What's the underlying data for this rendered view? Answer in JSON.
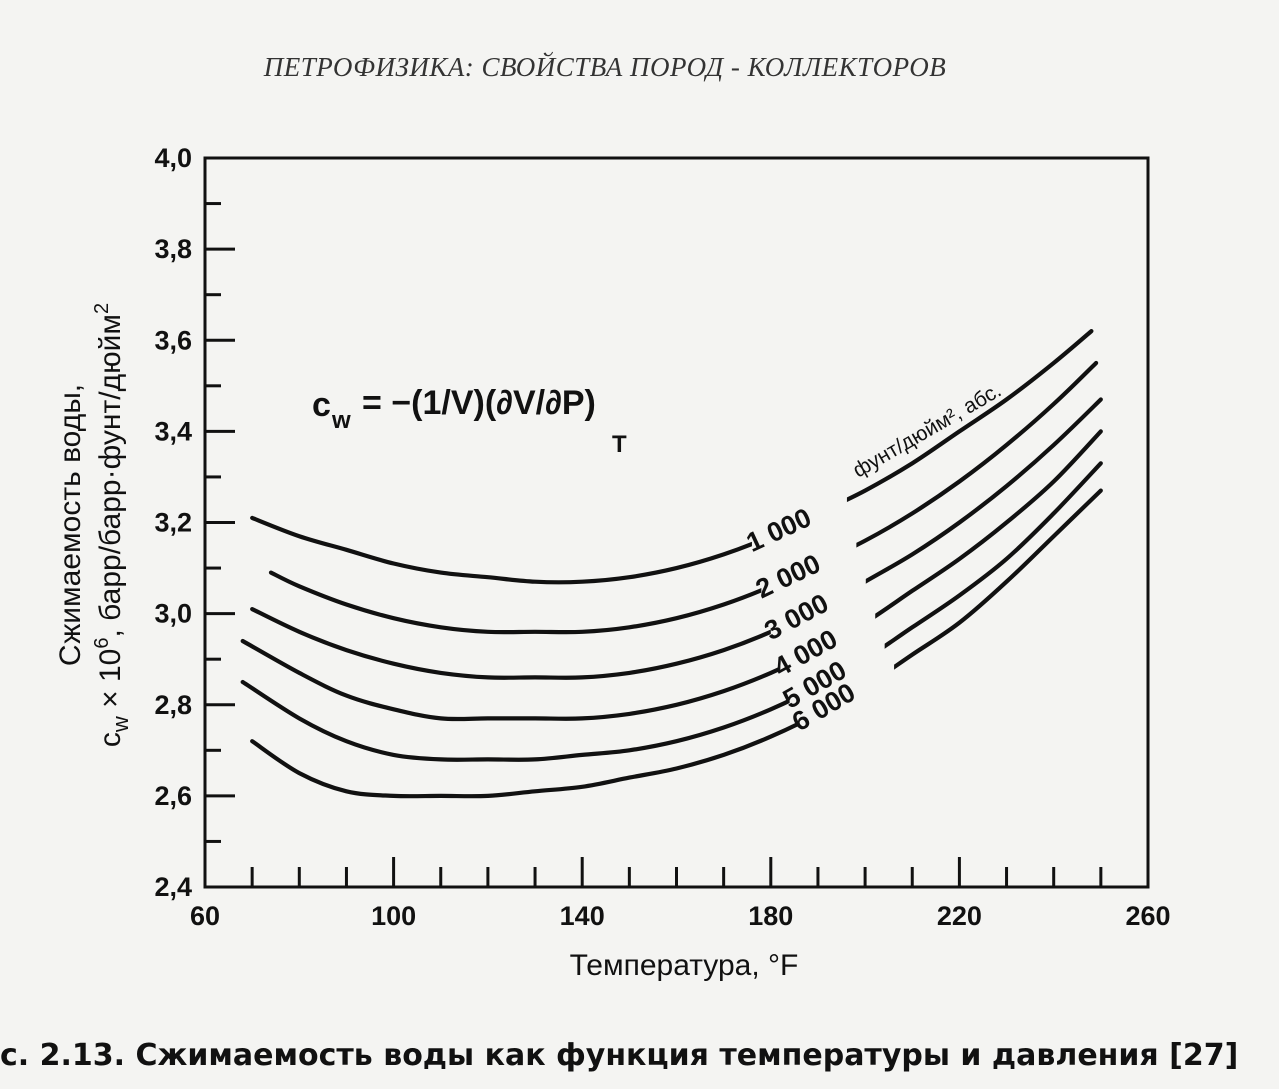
{
  "page": {
    "header": "ПЕТРОФИЗИКА: СВОЙСТВА ПОРОД - КОЛЛЕКТОРОВ",
    "caption": "с. 2.13. Сжимаемость воды как функция температуры и давления [27]"
  },
  "formula": {
    "lhs": "c",
    "lhs_sub": "w",
    "rhs_text": "= −(1/V)(∂V/∂P)",
    "rhs_sub": "T"
  },
  "chart_data": {
    "type": "line",
    "title": "",
    "xlabel": "Температура, °F",
    "ylabel_line1": "Сжимаемость воды,",
    "ylabel_line2_prefix": "c",
    "ylabel_line2_sub": "w",
    "ylabel_line2_mid": " × 10",
    "ylabel_line2_sup": "6",
    "ylabel_line2_suffix": ", барр/барр·фунт/дюйм",
    "ylabel_line2_sup2": "2",
    "xlim": [
      60,
      260
    ],
    "ylim": [
      2.4,
      4.0
    ],
    "x_ticks": [
      "60",
      "100",
      "140",
      "180",
      "220",
      "260"
    ],
    "y_ticks": [
      "2,4",
      "2,6",
      "2,8",
      "3,0",
      "3,2",
      "3,4",
      "3,6",
      "3,8",
      "4,0"
    ],
    "grid": false,
    "pressure_unit_label": "фунт/дюйм², абс.",
    "series": [
      {
        "name": "1 000",
        "x": [
          70,
          80,
          90,
          100,
          110,
          120,
          130,
          140,
          150,
          160,
          170,
          180,
          190,
          200,
          210,
          220,
          230,
          240,
          248
        ],
        "y": [
          3.21,
          3.17,
          3.14,
          3.11,
          3.09,
          3.08,
          3.07,
          3.07,
          3.08,
          3.1,
          3.13,
          3.17,
          3.22,
          3.27,
          3.33,
          3.4,
          3.47,
          3.55,
          3.62
        ]
      },
      {
        "name": "2 000",
        "x": [
          74,
          80,
          90,
          100,
          110,
          120,
          130,
          140,
          150,
          160,
          170,
          180,
          190,
          200,
          210,
          220,
          230,
          240,
          249
        ],
        "y": [
          3.09,
          3.06,
          3.02,
          2.99,
          2.97,
          2.96,
          2.96,
          2.96,
          2.97,
          2.99,
          3.02,
          3.06,
          3.11,
          3.16,
          3.22,
          3.29,
          3.37,
          3.46,
          3.55
        ]
      },
      {
        "name": "3 000",
        "x": [
          70,
          80,
          90,
          100,
          110,
          120,
          130,
          140,
          150,
          160,
          170,
          180,
          190,
          200,
          210,
          220,
          230,
          240,
          250
        ],
        "y": [
          3.01,
          2.96,
          2.92,
          2.89,
          2.87,
          2.86,
          2.86,
          2.86,
          2.87,
          2.89,
          2.92,
          2.96,
          3.01,
          3.07,
          3.13,
          3.2,
          3.28,
          3.37,
          3.47
        ]
      },
      {
        "name": "4 000",
        "x": [
          68,
          80,
          90,
          100,
          110,
          120,
          130,
          140,
          150,
          160,
          170,
          180,
          190,
          200,
          210,
          220,
          230,
          240,
          250
        ],
        "y": [
          2.94,
          2.87,
          2.82,
          2.79,
          2.77,
          2.77,
          2.77,
          2.77,
          2.78,
          2.8,
          2.83,
          2.87,
          2.92,
          2.98,
          3.05,
          3.12,
          3.2,
          3.29,
          3.4
        ]
      },
      {
        "name": "5 000",
        "x": [
          68,
          80,
          90,
          100,
          110,
          120,
          130,
          140,
          150,
          160,
          170,
          180,
          190,
          200,
          210,
          220,
          230,
          240,
          250
        ],
        "y": [
          2.85,
          2.77,
          2.72,
          2.69,
          2.68,
          2.68,
          2.68,
          2.69,
          2.7,
          2.72,
          2.75,
          2.79,
          2.84,
          2.9,
          2.97,
          3.04,
          3.12,
          3.22,
          3.33
        ]
      },
      {
        "name": "6 000",
        "x": [
          70,
          80,
          90,
          100,
          110,
          120,
          130,
          140,
          150,
          160,
          170,
          180,
          190,
          200,
          210,
          220,
          230,
          240,
          250
        ],
        "y": [
          2.72,
          2.65,
          2.61,
          2.6,
          2.6,
          2.6,
          2.61,
          2.62,
          2.64,
          2.66,
          2.69,
          2.73,
          2.78,
          2.84,
          2.91,
          2.98,
          3.07,
          3.17,
          3.27
        ]
      }
    ]
  }
}
